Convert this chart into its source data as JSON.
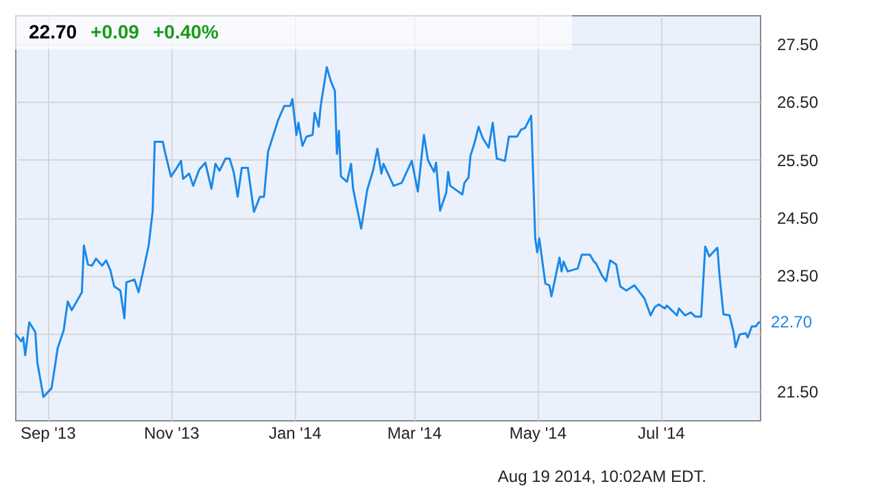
{
  "chart_data": {
    "type": "line",
    "title": "22.70",
    "annotations": [
      "+0.09",
      "+0.40%",
      "Aug 19 2014, 10:02AM EDT.",
      {
        "text": "22.70",
        "x": "2014-08-19",
        "y": 22.7
      }
    ],
    "x": [
      "2013-08-16",
      "2013-08-19",
      "2013-08-20",
      "2013-08-21",
      "2013-08-23",
      "2013-08-26",
      "2013-08-27",
      "2013-08-30",
      "2013-09-03",
      "2013-09-05",
      "2013-09-06",
      "2013-09-09",
      "2013-09-11",
      "2013-09-13",
      "2013-09-18",
      "2013-09-19",
      "2013-09-21",
      "2013-09-23",
      "2013-09-25",
      "2013-09-28",
      "2013-09-30",
      "2013-10-02",
      "2013-10-04",
      "2013-10-07",
      "2013-10-09",
      "2013-10-10",
      "2013-10-14",
      "2013-10-16",
      "2013-10-19",
      "2013-10-21",
      "2013-10-23",
      "2013-10-24",
      "2013-10-28",
      "2013-10-29",
      "2013-11-01",
      "2013-11-03",
      "2013-11-06",
      "2013-11-07",
      "2013-11-10",
      "2013-11-12",
      "2013-11-15",
      "2013-11-18",
      "2013-11-21",
      "2013-11-23",
      "2013-11-25",
      "2013-11-28",
      "2013-11-30",
      "2013-12-02",
      "2013-12-04",
      "2013-12-06",
      "2013-12-09",
      "2013-12-12",
      "2013-12-15",
      "2013-12-17",
      "2013-12-19",
      "2013-12-24",
      "2013-12-27",
      "2013-12-30",
      "2013-12-31",
      "2014-01-02",
      "2014-01-03",
      "2014-01-05",
      "2014-01-07",
      "2014-01-10",
      "2014-01-11",
      "2014-01-13",
      "2014-01-14",
      "2014-01-17",
      "2014-01-19",
      "2014-01-21",
      "2014-01-22",
      "2014-01-23",
      "2014-01-24",
      "2014-01-27",
      "2014-01-29",
      "2014-01-30",
      "2014-02-03",
      "2014-02-06",
      "2014-02-09",
      "2014-02-11",
      "2014-02-13",
      "2014-02-14",
      "2014-02-19",
      "2014-02-23",
      "2014-02-28",
      "2014-03-03",
      "2014-03-06",
      "2014-03-08",
      "2014-03-11",
      "2014-03-12",
      "2014-03-14",
      "2014-03-17",
      "2014-03-18",
      "2014-03-19",
      "2014-03-25",
      "2014-03-26",
      "2014-03-28",
      "2014-03-29",
      "2014-03-31",
      "2014-04-02",
      "2014-04-04",
      "2014-04-07",
      "2014-04-09",
      "2014-04-11",
      "2014-04-15",
      "2014-04-17",
      "2014-04-21",
      "2014-04-23",
      "2014-04-25",
      "2014-04-28",
      "2014-04-30",
      "2014-05-01",
      "2014-05-02",
      "2014-05-05",
      "2014-05-07",
      "2014-05-08",
      "2014-05-12",
      "2014-05-13",
      "2014-05-14",
      "2014-05-16",
      "2014-05-21",
      "2014-05-23",
      "2014-05-27",
      "2014-05-29",
      "2014-05-30",
      "2014-06-02",
      "2014-06-04",
      "2014-06-06",
      "2014-06-09",
      "2014-06-11",
      "2014-06-14",
      "2014-06-18",
      "2014-06-23",
      "2014-06-26",
      "2014-06-28",
      "2014-06-30",
      "2014-07-03",
      "2014-07-04",
      "2014-07-07",
      "2014-07-09",
      "2014-07-10",
      "2014-07-13",
      "2014-07-16",
      "2014-07-18",
      "2014-07-21",
      "2014-07-23",
      "2014-07-25",
      "2014-07-29",
      "2014-07-30",
      "2014-08-01",
      "2014-08-04",
      "2014-08-06",
      "2014-08-07",
      "2014-08-09",
      "2014-08-12",
      "2014-08-13",
      "2014-08-15",
      "2014-08-17",
      "2014-08-18",
      "2014-08-19"
    ],
    "series": [
      {
        "color": "#1a88e8",
        "values": [
          22.5,
          22.36,
          22.43,
          22.12,
          22.69,
          22.52,
          22.0,
          21.4,
          21.55,
          22.0,
          22.24,
          22.55,
          23.05,
          22.9,
          23.21,
          24.02,
          23.69,
          23.67,
          23.79,
          23.67,
          23.76,
          23.6,
          23.31,
          23.24,
          22.76,
          23.38,
          23.43,
          23.21,
          23.69,
          24.02,
          24.62,
          25.81,
          25.81,
          25.64,
          25.21,
          25.31,
          25.48,
          25.17,
          25.26,
          25.05,
          25.33,
          25.45,
          25.0,
          25.43,
          25.31,
          25.52,
          25.52,
          25.29,
          24.86,
          25.36,
          25.36,
          24.6,
          24.86,
          24.86,
          25.64,
          26.19,
          26.43,
          26.43,
          26.55,
          25.93,
          26.14,
          25.74,
          25.9,
          25.93,
          26.31,
          26.07,
          26.43,
          27.1,
          26.86,
          26.69,
          25.6,
          26.0,
          25.21,
          25.12,
          25.43,
          25.0,
          24.31,
          24.98,
          25.33,
          25.69,
          25.26,
          25.43,
          25.05,
          25.1,
          25.48,
          24.95,
          25.93,
          25.49,
          25.29,
          25.45,
          24.62,
          24.93,
          25.29,
          25.05,
          24.9,
          25.1,
          25.19,
          25.57,
          25.79,
          26.07,
          25.88,
          25.71,
          26.14,
          25.52,
          25.48,
          25.9,
          25.9,
          26.02,
          26.05,
          26.26,
          24.14,
          23.9,
          24.14,
          23.36,
          23.33,
          23.14,
          23.81,
          23.57,
          23.74,
          23.57,
          23.62,
          23.86,
          23.86,
          23.74,
          23.71,
          23.5,
          23.4,
          23.76,
          23.69,
          23.31,
          23.24,
          23.33,
          23.1,
          22.81,
          22.95,
          23.0,
          22.93,
          22.98,
          22.88,
          22.81,
          22.93,
          22.81,
          22.86,
          22.79,
          22.79,
          24.0,
          23.83,
          23.98,
          23.52,
          22.83,
          22.81,
          22.52,
          22.26,
          22.48,
          22.5,
          22.43,
          22.62,
          22.62,
          22.67,
          22.7
        ]
      }
    ],
    "xlim": [
      "2013-08-16",
      "2014-08-19"
    ],
    "xticks": [
      {
        "value": "2013-09-01",
        "label": "Sep '13"
      },
      {
        "value": "2013-11-01",
        "label": "Nov '13"
      },
      {
        "value": "2014-01-01",
        "label": "Jan '14"
      },
      {
        "value": "2014-03-01",
        "label": "Mar '14"
      },
      {
        "value": "2014-05-01",
        "label": "May '14"
      },
      {
        "value": "2014-07-01",
        "label": "Jul '14"
      }
    ],
    "ylim": [
      21,
      28
    ],
    "yticks": [
      {
        "value": 21.5,
        "label": "21.50"
      },
      {
        "value": 22.5,
        "label": null
      },
      {
        "value": 23.5,
        "label": "23.50"
      },
      {
        "value": 24.5,
        "label": "24.50"
      },
      {
        "value": 25.5,
        "label": "25.50"
      },
      {
        "value": 26.5,
        "label": "26.50"
      },
      {
        "value": 27.5,
        "label": "27.50"
      }
    ],
    "grid": true
  }
}
